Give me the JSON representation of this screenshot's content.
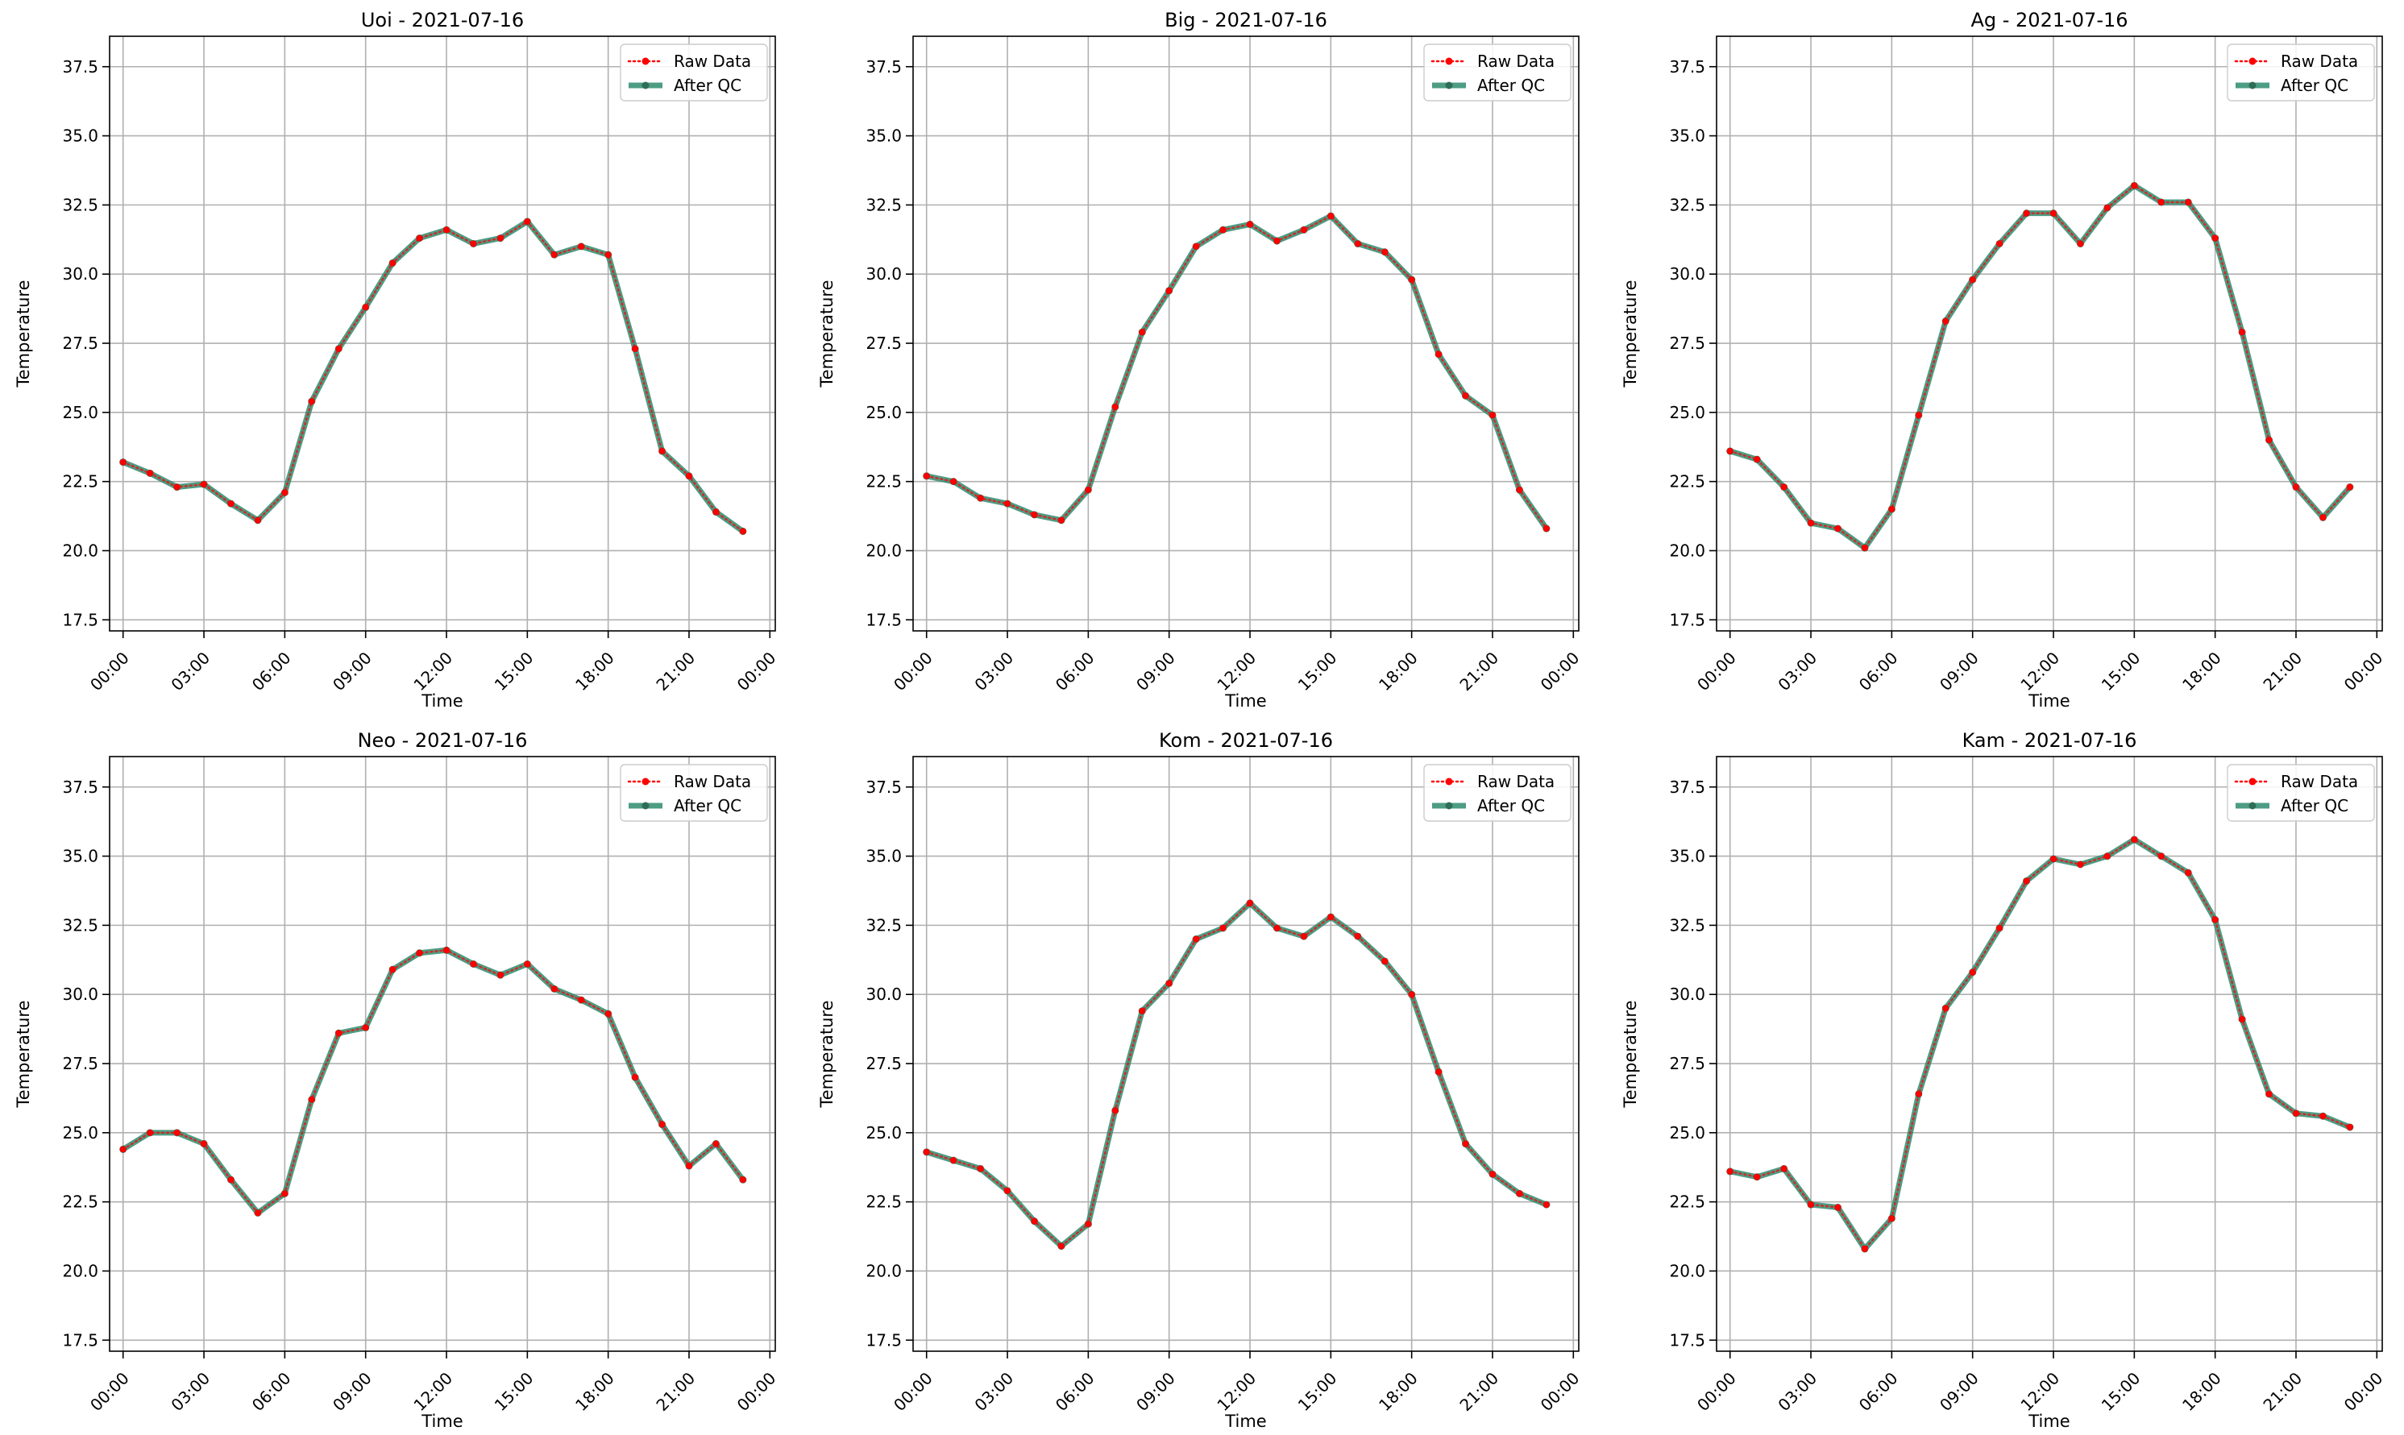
{
  "figure": {
    "background": "#ffffff"
  },
  "styles": {
    "raw_color": "#ff0000",
    "qc_color": "#2e8b6f",
    "qc_marker_color": "#2e6e57",
    "grid_color": "#b0b0b0"
  },
  "chart_data": [
    {
      "type": "line",
      "title": "Uoi - 2021-07-16",
      "xlabel": "Time",
      "ylabel": "Temperature",
      "xticks": [
        "00:00",
        "03:00",
        "06:00",
        "09:00",
        "12:00",
        "15:00",
        "18:00",
        "21:00",
        "00:00"
      ],
      "yticks": [
        "17.5",
        "20.0",
        "22.5",
        "25.0",
        "27.5",
        "30.0",
        "32.5",
        "35.0",
        "37.5"
      ],
      "xlim": [
        -0.5,
        24.2
      ],
      "ylim": [
        17.1,
        38.6
      ],
      "grid": true,
      "legend": "top-right",
      "x_hours": [
        0,
        1,
        2,
        3,
        4,
        5,
        6,
        7,
        8,
        9,
        10,
        11,
        12,
        13,
        14,
        15,
        16,
        17,
        18,
        19,
        20,
        21,
        22,
        23
      ],
      "series": [
        {
          "name": "Raw Data",
          "style": "dotted",
          "values": [
            23.2,
            22.8,
            22.3,
            22.4,
            21.7,
            21.1,
            22.1,
            25.4,
            27.3,
            28.8,
            30.4,
            31.3,
            31.6,
            31.1,
            31.3,
            31.9,
            30.7,
            31.0,
            30.7,
            27.3,
            23.6,
            22.7,
            21.4,
            20.7
          ]
        },
        {
          "name": "After QC",
          "style": "solid",
          "values": [
            23.2,
            22.8,
            22.3,
            22.4,
            21.7,
            21.1,
            22.1,
            25.4,
            27.3,
            28.8,
            30.4,
            31.3,
            31.6,
            31.1,
            31.3,
            31.9,
            30.7,
            31.0,
            30.7,
            27.3,
            23.6,
            22.7,
            21.4,
            20.7
          ]
        }
      ]
    },
    {
      "type": "line",
      "title": "Big - 2021-07-16",
      "xlabel": "Time",
      "ylabel": "Temperature",
      "xticks": [
        "00:00",
        "03:00",
        "06:00",
        "09:00",
        "12:00",
        "15:00",
        "18:00",
        "21:00",
        "00:00"
      ],
      "yticks": [
        "17.5",
        "20.0",
        "22.5",
        "25.0",
        "27.5",
        "30.0",
        "32.5",
        "35.0",
        "37.5"
      ],
      "xlim": [
        -0.5,
        24.2
      ],
      "ylim": [
        17.1,
        38.6
      ],
      "grid": true,
      "legend": "top-right",
      "x_hours": [
        0,
        1,
        2,
        3,
        4,
        5,
        6,
        7,
        8,
        9,
        10,
        11,
        12,
        13,
        14,
        15,
        16,
        17,
        18,
        19,
        20,
        21,
        22,
        23
      ],
      "series": [
        {
          "name": "Raw Data",
          "style": "dotted",
          "values": [
            22.7,
            22.5,
            21.9,
            21.7,
            21.3,
            21.1,
            22.2,
            25.2,
            27.9,
            29.4,
            31.0,
            31.6,
            31.8,
            31.2,
            31.6,
            32.1,
            31.1,
            30.8,
            29.8,
            27.1,
            25.6,
            24.9,
            22.2,
            20.8
          ]
        },
        {
          "name": "After QC",
          "style": "solid",
          "values": [
            22.7,
            22.5,
            21.9,
            21.7,
            21.3,
            21.1,
            22.2,
            25.2,
            27.9,
            29.4,
            31.0,
            31.6,
            31.8,
            31.2,
            31.6,
            32.1,
            31.1,
            30.8,
            29.8,
            27.1,
            25.6,
            24.9,
            22.2,
            20.8
          ]
        }
      ]
    },
    {
      "type": "line",
      "title": "Ag - 2021-07-16",
      "xlabel": "Time",
      "ylabel": "Temperature",
      "xticks": [
        "00:00",
        "03:00",
        "06:00",
        "09:00",
        "12:00",
        "15:00",
        "18:00",
        "21:00",
        "00:00"
      ],
      "yticks": [
        "17.5",
        "20.0",
        "22.5",
        "25.0",
        "27.5",
        "30.0",
        "32.5",
        "35.0",
        "37.5"
      ],
      "xlim": [
        -0.5,
        24.2
      ],
      "ylim": [
        17.1,
        38.6
      ],
      "grid": true,
      "legend": "top-right",
      "x_hours": [
        0,
        1,
        2,
        3,
        4,
        5,
        6,
        7,
        8,
        9,
        10,
        11,
        12,
        13,
        14,
        15,
        16,
        17,
        18,
        19,
        20,
        21,
        22,
        23
      ],
      "series": [
        {
          "name": "Raw Data",
          "style": "dotted",
          "values": [
            23.6,
            23.3,
            22.3,
            21.0,
            20.8,
            20.1,
            21.5,
            24.9,
            28.3,
            29.8,
            31.1,
            32.2,
            32.2,
            31.1,
            32.4,
            33.2,
            32.6,
            32.6,
            31.3,
            27.9,
            24.0,
            22.3,
            21.2,
            22.3
          ]
        },
        {
          "name": "After QC",
          "style": "solid",
          "values": [
            23.6,
            23.3,
            22.3,
            21.0,
            20.8,
            20.1,
            21.5,
            24.9,
            28.3,
            29.8,
            31.1,
            32.2,
            32.2,
            31.1,
            32.4,
            33.2,
            32.6,
            32.6,
            31.3,
            27.9,
            24.0,
            22.3,
            21.2,
            22.3
          ]
        }
      ]
    },
    {
      "type": "line",
      "title": "Neo - 2021-07-16",
      "xlabel": "Time",
      "ylabel": "Temperature",
      "xticks": [
        "00:00",
        "03:00",
        "06:00",
        "09:00",
        "12:00",
        "15:00",
        "18:00",
        "21:00",
        "00:00"
      ],
      "yticks": [
        "17.5",
        "20.0",
        "22.5",
        "25.0",
        "27.5",
        "30.0",
        "32.5",
        "35.0",
        "37.5"
      ],
      "xlim": [
        -0.5,
        24.2
      ],
      "ylim": [
        17.1,
        38.6
      ],
      "grid": true,
      "legend": "top-right",
      "x_hours": [
        0,
        1,
        2,
        3,
        4,
        5,
        6,
        7,
        8,
        9,
        10,
        11,
        12,
        13,
        14,
        15,
        16,
        17,
        18,
        19,
        20,
        21,
        22,
        23
      ],
      "series": [
        {
          "name": "Raw Data",
          "style": "dotted",
          "values": [
            24.4,
            25.0,
            25.0,
            24.6,
            23.3,
            22.1,
            22.8,
            26.2,
            28.6,
            28.8,
            30.9,
            31.5,
            31.6,
            31.1,
            30.7,
            31.1,
            30.2,
            29.8,
            29.3,
            27.0,
            25.3,
            23.8,
            24.6,
            23.3
          ]
        },
        {
          "name": "After QC",
          "style": "solid",
          "values": [
            24.4,
            25.0,
            25.0,
            24.6,
            23.3,
            22.1,
            22.8,
            26.2,
            28.6,
            28.8,
            30.9,
            31.5,
            31.6,
            31.1,
            30.7,
            31.1,
            30.2,
            29.8,
            29.3,
            27.0,
            25.3,
            23.8,
            24.6,
            23.3
          ]
        }
      ]
    },
    {
      "type": "line",
      "title": "Kom - 2021-07-16",
      "xlabel": "Time",
      "ylabel": "Temperature",
      "xticks": [
        "00:00",
        "03:00",
        "06:00",
        "09:00",
        "12:00",
        "15:00",
        "18:00",
        "21:00",
        "00:00"
      ],
      "yticks": [
        "17.5",
        "20.0",
        "22.5",
        "25.0",
        "27.5",
        "30.0",
        "32.5",
        "35.0",
        "37.5"
      ],
      "xlim": [
        -0.5,
        24.2
      ],
      "ylim": [
        17.1,
        38.6
      ],
      "grid": true,
      "legend": "top-right",
      "x_hours": [
        0,
        1,
        2,
        3,
        4,
        5,
        6,
        7,
        8,
        9,
        10,
        11,
        12,
        13,
        14,
        15,
        16,
        17,
        18,
        19,
        20,
        21,
        22,
        23
      ],
      "series": [
        {
          "name": "Raw Data",
          "style": "dotted",
          "values": [
            24.3,
            24.0,
            23.7,
            22.9,
            21.8,
            20.9,
            21.7,
            25.8,
            29.4,
            30.4,
            32.0,
            32.4,
            33.3,
            32.4,
            32.1,
            32.8,
            32.1,
            31.2,
            30.0,
            27.2,
            24.6,
            23.5,
            22.8,
            22.4
          ]
        },
        {
          "name": "After QC",
          "style": "solid",
          "values": [
            24.3,
            24.0,
            23.7,
            22.9,
            21.8,
            20.9,
            21.7,
            25.8,
            29.4,
            30.4,
            32.0,
            32.4,
            33.3,
            32.4,
            32.1,
            32.8,
            32.1,
            31.2,
            30.0,
            27.2,
            24.6,
            23.5,
            22.8,
            22.4
          ]
        }
      ]
    },
    {
      "type": "line",
      "title": "Kam - 2021-07-16",
      "xlabel": "Time",
      "ylabel": "Temperature",
      "xticks": [
        "00:00",
        "03:00",
        "06:00",
        "09:00",
        "12:00",
        "15:00",
        "18:00",
        "21:00",
        "00:00"
      ],
      "yticks": [
        "17.5",
        "20.0",
        "22.5",
        "25.0",
        "27.5",
        "30.0",
        "32.5",
        "35.0",
        "37.5"
      ],
      "xlim": [
        -0.5,
        24.2
      ],
      "ylim": [
        17.1,
        38.6
      ],
      "grid": true,
      "legend": "top-right",
      "x_hours": [
        0,
        1,
        2,
        3,
        4,
        5,
        6,
        7,
        8,
        9,
        10,
        11,
        12,
        13,
        14,
        15,
        16,
        17,
        18,
        19,
        20,
        21,
        22,
        23
      ],
      "series": [
        {
          "name": "Raw Data",
          "style": "dotted",
          "values": [
            23.6,
            23.4,
            23.7,
            22.4,
            22.3,
            20.8,
            21.9,
            26.4,
            29.5,
            30.8,
            32.4,
            34.1,
            34.9,
            34.7,
            35.0,
            35.6,
            35.0,
            34.4,
            32.7,
            29.1,
            26.4,
            25.7,
            25.6,
            25.2
          ]
        },
        {
          "name": "After QC",
          "style": "solid",
          "values": [
            23.6,
            23.4,
            23.7,
            22.4,
            22.3,
            20.8,
            21.9,
            26.4,
            29.5,
            30.8,
            32.4,
            34.1,
            34.9,
            34.7,
            35.0,
            35.6,
            35.0,
            34.4,
            32.7,
            29.1,
            26.4,
            25.7,
            25.6,
            25.2
          ]
        }
      ]
    }
  ]
}
